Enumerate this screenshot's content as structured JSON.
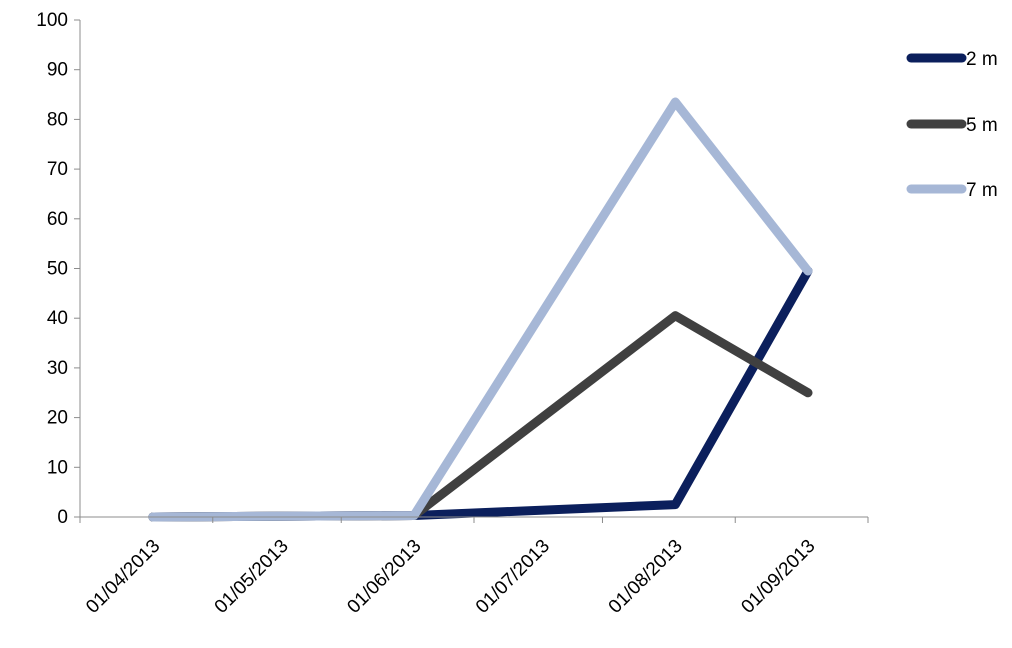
{
  "chart_data": {
    "type": "line",
    "title": "",
    "xlabel": "",
    "ylabel": "",
    "x_ticks": [
      "01/04/2013",
      "01/05/2013",
      "01/06/2013",
      "01/07/2013",
      "01/08/2013",
      "01/09/2013"
    ],
    "x_domain": [
      "2013-03-15",
      "2013-09-15"
    ],
    "y_ticks": [
      "0",
      "10",
      "20",
      "30",
      "40",
      "50",
      "60",
      "70",
      "80",
      "90",
      "100"
    ],
    "ylim": [
      0,
      100
    ],
    "grid": false,
    "legend_position": "right",
    "series": [
      {
        "name": "2 m",
        "color": "#0b1f5c",
        "points": [
          {
            "date": "2013-04-01",
            "value": 0
          },
          {
            "date": "2013-06-01",
            "value": 0.3
          },
          {
            "date": "2013-08-01",
            "value": 2.5
          },
          {
            "date": "2013-09-01",
            "value": 49.5
          }
        ]
      },
      {
        "name": "5 m",
        "color": "#404040",
        "points": [
          {
            "date": "2013-04-01",
            "value": 0
          },
          {
            "date": "2013-06-01",
            "value": 0.3
          },
          {
            "date": "2013-08-01",
            "value": 40.5
          },
          {
            "date": "2013-09-01",
            "value": 25
          }
        ]
      },
      {
        "name": "7 m",
        "color": "#a6b7d6",
        "points": [
          {
            "date": "2013-04-01",
            "value": 0
          },
          {
            "date": "2013-06-01",
            "value": 0.3
          },
          {
            "date": "2013-08-01",
            "value": 83.5
          },
          {
            "date": "2013-09-01",
            "value": 49.5
          }
        ]
      }
    ]
  }
}
